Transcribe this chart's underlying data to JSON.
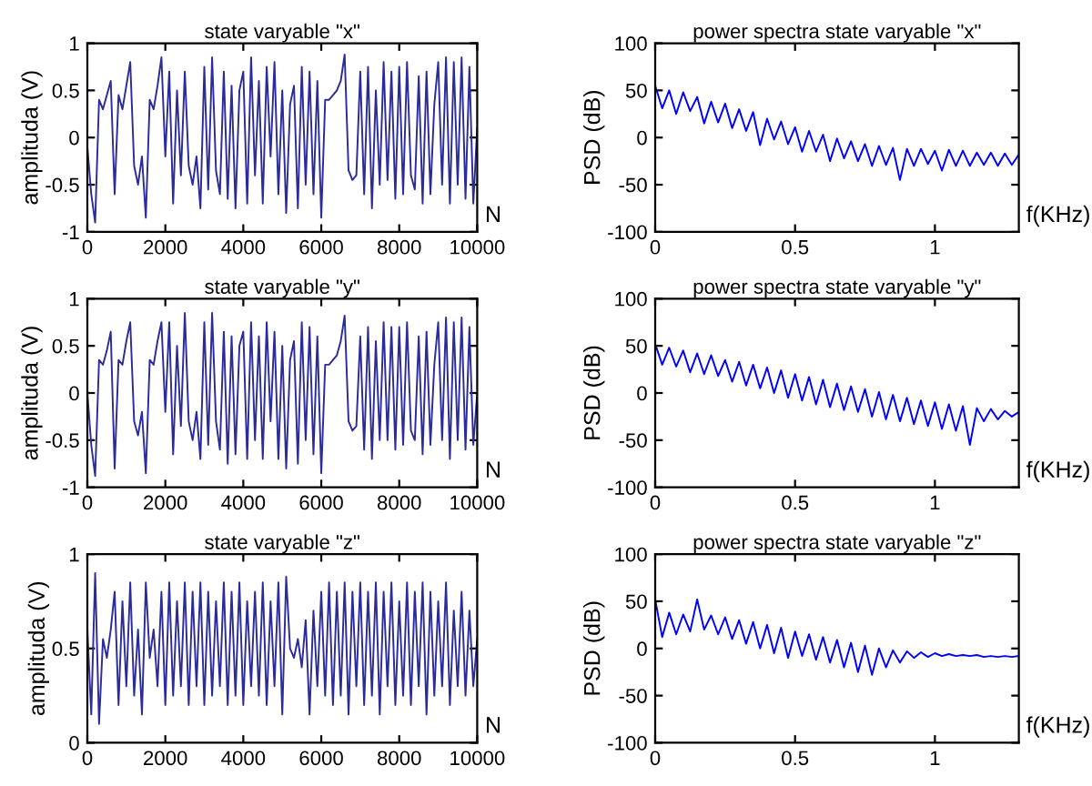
{
  "chart_data": [
    {
      "type": "line",
      "title": "state varyable \"x\"",
      "xlabel": "N",
      "ylabel": "amplituda (V)",
      "xlim": [
        0,
        10000
      ],
      "ylim": [
        -1,
        1
      ],
      "xticks": [
        0,
        2000,
        4000,
        6000,
        8000,
        10000
      ],
      "yticks": [
        -1,
        -0.5,
        0,
        0.5,
        1
      ],
      "grid": false,
      "legend": false,
      "x": [
        0,
        100,
        200,
        300,
        400,
        500,
        600,
        700,
        800,
        900,
        1000,
        1100,
        1200,
        1300,
        1400,
        1500,
        1600,
        1700,
        1800,
        1900,
        2000,
        2100,
        2200,
        2300,
        2400,
        2500,
        2600,
        2700,
        2800,
        2900,
        3000,
        3100,
        3200,
        3300,
        3400,
        3500,
        3600,
        3700,
        3800,
        3900,
        4000,
        4100,
        4200,
        4300,
        4400,
        4500,
        4600,
        4700,
        4800,
        4900,
        5000,
        5100,
        5200,
        5300,
        5400,
        5500,
        5600,
        5700,
        5800,
        5900,
        6000,
        6100,
        6200,
        6300,
        6400,
        6500,
        6600,
        6700,
        6800,
        6900,
        7000,
        7100,
        7200,
        7300,
        7400,
        7500,
        7600,
        7700,
        7800,
        7900,
        8000,
        8100,
        8200,
        8300,
        8400,
        8500,
        8600,
        8700,
        8800,
        8900,
        9000,
        9100,
        9200,
        9300,
        9400,
        9500,
        9600,
        9700,
        9800,
        9900,
        10000
      ],
      "series": [
        {
          "color": "#2b2b9b",
          "values": [
            -0.1,
            -0.6,
            -0.9,
            0.4,
            0.3,
            0.45,
            0.6,
            -0.6,
            0.45,
            0.3,
            0.55,
            0.8,
            -0.3,
            -0.5,
            -0.2,
            -0.85,
            0.4,
            0.3,
            0.55,
            0.85,
            -0.2,
            0.7,
            -0.7,
            0.5,
            -0.4,
            0.7,
            -0.3,
            -0.5,
            -0.2,
            -0.75,
            0.75,
            -0.55,
            0.85,
            -0.35,
            -0.6,
            0.7,
            -0.65,
            0.55,
            -0.75,
            0.5,
            0.7,
            -0.7,
            0.85,
            -0.4,
            0.6,
            -0.7,
            0.75,
            -0.2,
            0.8,
            -0.6,
            0.5,
            -0.8,
            0.35,
            0.55,
            -0.75,
            0.75,
            -0.5,
            0.7,
            -0.6,
            0.6,
            -0.85,
            0.4,
            0.4,
            0.45,
            0.5,
            0.6,
            0.88,
            -0.35,
            -0.45,
            -0.4,
            0.7,
            -0.6,
            0.75,
            -0.75,
            0.5,
            -0.5,
            0.8,
            -0.45,
            0.7,
            -0.65,
            0.75,
            -0.6,
            0.8,
            -0.4,
            -0.55,
            0.65,
            -0.7,
            0.7,
            -0.6,
            0.35,
            0.8,
            -0.5,
            0.85,
            -0.7,
            0.8,
            -0.5,
            0.85,
            -0.65,
            0.75,
            -0.7,
            0.1
          ]
        }
      ]
    },
    {
      "type": "line",
      "title": "power spectra state varyable \"x\"",
      "xlabel": "f(KHz)",
      "ylabel": "PSD (dB)",
      "xlim": [
        0,
        1.3
      ],
      "ylim": [
        -100,
        100
      ],
      "xticks": [
        0,
        0.5,
        1
      ],
      "yticks": [
        -100,
        -50,
        0,
        50,
        100
      ],
      "grid": false,
      "legend": false,
      "x": [
        0,
        0.025,
        0.05,
        0.075,
        0.1,
        0.125,
        0.15,
        0.175,
        0.2,
        0.225,
        0.25,
        0.275,
        0.3,
        0.325,
        0.35,
        0.375,
        0.4,
        0.425,
        0.45,
        0.475,
        0.5,
        0.525,
        0.55,
        0.575,
        0.6,
        0.625,
        0.65,
        0.675,
        0.7,
        0.725,
        0.75,
        0.775,
        0.8,
        0.825,
        0.85,
        0.875,
        0.9,
        0.925,
        0.95,
        0.975,
        1,
        1.025,
        1.05,
        1.075,
        1.1,
        1.125,
        1.15,
        1.175,
        1.2,
        1.225,
        1.25,
        1.275,
        1.3
      ],
      "series": [
        {
          "color": "#0000ff",
          "values": [
            55,
            31,
            50,
            25,
            48,
            28,
            43,
            15,
            38,
            16,
            36,
            10,
            30,
            7,
            27,
            -8,
            20,
            -2,
            17,
            -7,
            11,
            -15,
            7,
            -15,
            3,
            -25,
            -1,
            -22,
            -4,
            -25,
            -7,
            -30,
            -9,
            -29,
            -11,
            -45,
            -12,
            -30,
            -12,
            -28,
            -14,
            -35,
            -13,
            -30,
            -14,
            -30,
            -16,
            -29,
            -16,
            -30,
            -17,
            -29,
            -18
          ]
        }
      ]
    },
    {
      "type": "line",
      "title": "state varyable \"y\"",
      "xlabel": "N",
      "ylabel": "amplituda (V)",
      "xlim": [
        0,
        10000
      ],
      "ylim": [
        -1,
        1
      ],
      "xticks": [
        0,
        2000,
        4000,
        6000,
        8000,
        10000
      ],
      "yticks": [
        -1,
        -0.5,
        0,
        0.5,
        1
      ],
      "grid": false,
      "legend": false,
      "x": [
        0,
        100,
        200,
        300,
        400,
        500,
        600,
        700,
        800,
        900,
        1000,
        1100,
        1200,
        1300,
        1400,
        1500,
        1600,
        1700,
        1800,
        1900,
        2000,
        2100,
        2200,
        2300,
        2400,
        2500,
        2600,
        2700,
        2800,
        2900,
        3000,
        3100,
        3200,
        3300,
        3400,
        3500,
        3600,
        3700,
        3800,
        3900,
        4000,
        4100,
        4200,
        4300,
        4400,
        4500,
        4600,
        4700,
        4800,
        4900,
        5000,
        5100,
        5200,
        5300,
        5400,
        5500,
        5600,
        5700,
        5800,
        5900,
        6000,
        6100,
        6200,
        6300,
        6400,
        6500,
        6600,
        6700,
        6800,
        6900,
        7000,
        7100,
        7200,
        7300,
        7400,
        7500,
        7600,
        7700,
        7800,
        7900,
        8000,
        8100,
        8200,
        8300,
        8400,
        8500,
        8600,
        8700,
        8800,
        8900,
        9000,
        9100,
        9200,
        9300,
        9400,
        9500,
        9600,
        9700,
        9800,
        9900,
        10000
      ],
      "series": [
        {
          "color": "#2b2b9b",
          "values": [
            0,
            -0.55,
            -0.88,
            0.35,
            0.3,
            0.45,
            0.65,
            -0.8,
            0.35,
            0.3,
            0.55,
            0.75,
            -0.3,
            -0.45,
            -0.2,
            -0.85,
            0.35,
            0.3,
            0.55,
            0.75,
            -0.2,
            0.75,
            -0.65,
            0.5,
            -0.35,
            0.85,
            -0.3,
            -0.5,
            -0.2,
            -0.7,
            0.75,
            -0.55,
            0.85,
            -0.3,
            -0.6,
            0.65,
            -0.75,
            0.6,
            -0.65,
            0.5,
            0.65,
            -0.7,
            0.75,
            -0.5,
            0.6,
            -0.7,
            0.75,
            -0.3,
            0.65,
            -0.7,
            0.5,
            -0.8,
            0.35,
            0.55,
            -0.75,
            0.75,
            -0.5,
            0.7,
            -0.65,
            0.6,
            -0.85,
            0.3,
            0.3,
            0.35,
            0.4,
            0.55,
            0.82,
            -0.3,
            -0.4,
            -0.35,
            0.6,
            -0.6,
            0.7,
            -0.7,
            0.55,
            -0.5,
            0.75,
            -0.5,
            0.7,
            -0.6,
            0.7,
            -0.55,
            0.75,
            -0.4,
            -0.5,
            0.6,
            -0.65,
            0.65,
            -0.55,
            0.3,
            0.75,
            -0.5,
            0.8,
            -0.7,
            0.75,
            -0.5,
            0.8,
            -0.6,
            0.7,
            -0.55,
            0.0
          ]
        }
      ]
    },
    {
      "type": "line",
      "title": "power spectra state varyable \"y\"",
      "xlabel": "f(KHz)",
      "ylabel": "PSD (dB)",
      "xlim": [
        0,
        1.3
      ],
      "ylim": [
        -100,
        100
      ],
      "xticks": [
        0,
        0.5,
        1
      ],
      "yticks": [
        -100,
        -50,
        0,
        50,
        100
      ],
      "grid": false,
      "legend": false,
      "x": [
        0,
        0.025,
        0.05,
        0.075,
        0.1,
        0.125,
        0.15,
        0.175,
        0.2,
        0.225,
        0.25,
        0.275,
        0.3,
        0.325,
        0.35,
        0.375,
        0.4,
        0.425,
        0.45,
        0.475,
        0.5,
        0.525,
        0.55,
        0.575,
        0.6,
        0.625,
        0.65,
        0.675,
        0.7,
        0.725,
        0.75,
        0.775,
        0.8,
        0.825,
        0.85,
        0.875,
        0.9,
        0.925,
        0.95,
        0.975,
        1,
        1.025,
        1.05,
        1.075,
        1.1,
        1.125,
        1.15,
        1.175,
        1.2,
        1.225,
        1.25,
        1.275,
        1.3
      ],
      "series": [
        {
          "color": "#0000ff",
          "values": [
            52,
            30,
            48,
            28,
            45,
            22,
            42,
            20,
            40,
            18,
            35,
            12,
            33,
            8,
            30,
            5,
            27,
            0,
            24,
            -5,
            20,
            -8,
            17,
            -12,
            14,
            -15,
            10,
            -18,
            7,
            -20,
            4,
            -25,
            1,
            -28,
            -2,
            -30,
            -5,
            -33,
            -8,
            -35,
            -10,
            -38,
            -12,
            -40,
            -14,
            -55,
            -16,
            -30,
            -17,
            -28,
            -19,
            -25,
            -20
          ]
        }
      ]
    },
    {
      "type": "line",
      "title": "state varyable \"z\"",
      "xlabel": "N",
      "ylabel": "amplituda (V)",
      "xlim": [
        0,
        10000
      ],
      "ylim": [
        0,
        1
      ],
      "xticks": [
        0,
        2000,
        4000,
        6000,
        8000,
        10000
      ],
      "yticks": [
        0,
        0.5,
        1
      ],
      "grid": false,
      "legend": false,
      "x": [
        0,
        100,
        200,
        300,
        400,
        500,
        600,
        700,
        800,
        900,
        1000,
        1100,
        1200,
        1300,
        1400,
        1500,
        1600,
        1700,
        1800,
        1900,
        2000,
        2100,
        2200,
        2300,
        2400,
        2500,
        2600,
        2700,
        2800,
        2900,
        3000,
        3100,
        3200,
        3300,
        3400,
        3500,
        3600,
        3700,
        3800,
        3900,
        4000,
        4100,
        4200,
        4300,
        4400,
        4500,
        4600,
        4700,
        4800,
        4900,
        5000,
        5100,
        5200,
        5300,
        5400,
        5500,
        5600,
        5700,
        5800,
        5900,
        6000,
        6100,
        6200,
        6300,
        6400,
        6500,
        6600,
        6700,
        6800,
        6900,
        7000,
        7100,
        7200,
        7300,
        7400,
        7500,
        7600,
        7700,
        7800,
        7900,
        8000,
        8100,
        8200,
        8300,
        8400,
        8500,
        8600,
        8700,
        8800,
        8900,
        9000,
        9100,
        9200,
        9300,
        9400,
        9500,
        9600,
        9700,
        9800,
        9900,
        10000
      ],
      "series": [
        {
          "color": "#2b2b9b",
          "values": [
            0.6,
            0.15,
            0.9,
            0.1,
            0.55,
            0.45,
            0.6,
            0.8,
            0.2,
            0.75,
            0.3,
            0.85,
            0.25,
            0.6,
            0.15,
            0.85,
            0.45,
            0.6,
            0.3,
            0.8,
            0.2,
            0.85,
            0.25,
            0.75,
            0.3,
            0.85,
            0.2,
            0.8,
            0.3,
            0.85,
            0.2,
            0.8,
            0.25,
            0.75,
            0.3,
            0.85,
            0.2,
            0.8,
            0.25,
            0.85,
            0.2,
            0.75,
            0.3,
            0.8,
            0.25,
            0.85,
            0.2,
            0.75,
            0.3,
            0.85,
            0.15,
            0.88,
            0.5,
            0.45,
            0.55,
            0.4,
            0.65,
            0.15,
            0.7,
            0.3,
            0.8,
            0.25,
            0.85,
            0.2,
            0.8,
            0.25,
            0.85,
            0.15,
            0.8,
            0.3,
            0.85,
            0.2,
            0.8,
            0.25,
            0.85,
            0.15,
            0.8,
            0.3,
            0.85,
            0.2,
            0.75,
            0.25,
            0.85,
            0.2,
            0.8,
            0.3,
            0.85,
            0.15,
            0.8,
            0.25,
            0.75,
            0.3,
            0.85,
            0.2,
            0.7,
            0.3,
            0.8,
            0.25,
            0.7,
            0.3,
            0.55
          ]
        }
      ]
    },
    {
      "type": "line",
      "title": "power spectra state varyable \"z\"",
      "xlabel": "f(KHz)",
      "ylabel": "PSD (dB)",
      "xlim": [
        0,
        1.3
      ],
      "ylim": [
        -100,
        100
      ],
      "xticks": [
        0,
        0.5,
        1
      ],
      "yticks": [
        -100,
        -50,
        0,
        50,
        100
      ],
      "grid": false,
      "legend": false,
      "x": [
        0,
        0.025,
        0.05,
        0.075,
        0.1,
        0.125,
        0.15,
        0.175,
        0.2,
        0.225,
        0.25,
        0.275,
        0.3,
        0.325,
        0.35,
        0.375,
        0.4,
        0.425,
        0.45,
        0.475,
        0.5,
        0.525,
        0.55,
        0.575,
        0.6,
        0.625,
        0.65,
        0.675,
        0.7,
        0.725,
        0.75,
        0.775,
        0.8,
        0.825,
        0.85,
        0.875,
        0.9,
        0.925,
        0.95,
        0.975,
        1,
        1.025,
        1.05,
        1.075,
        1.1,
        1.125,
        1.15,
        1.175,
        1.2,
        1.225,
        1.25,
        1.275,
        1.3
      ],
      "series": [
        {
          "color": "#0000ff",
          "values": [
            52,
            12,
            38,
            15,
            36,
            18,
            52,
            20,
            35,
            15,
            33,
            10,
            30,
            5,
            28,
            0,
            25,
            -5,
            22,
            -10,
            18,
            -8,
            15,
            -12,
            12,
            -15,
            9,
            -20,
            6,
            -25,
            3,
            -28,
            0,
            -20,
            -2,
            -15,
            -3,
            -10,
            -4,
            -9,
            -5,
            -8,
            -6,
            -8,
            -7,
            -8,
            -7,
            -9,
            -8,
            -9,
            -8,
            -9,
            -8
          ]
        }
      ]
    }
  ]
}
